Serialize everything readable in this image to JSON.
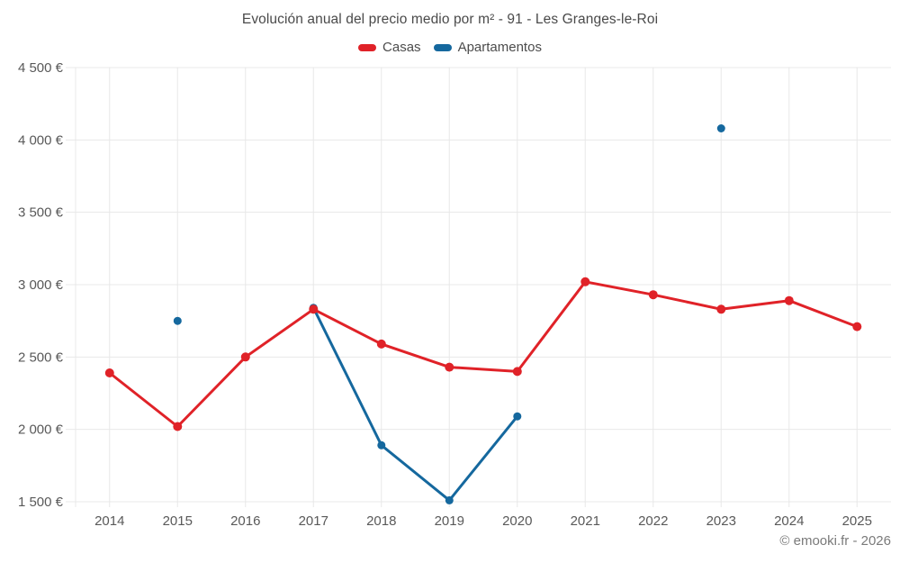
{
  "page": {
    "footer": "© emooki.fr - 2026"
  },
  "chart_data": {
    "type": "line",
    "title": "Evolución anual del precio medio por m² - 91 - Les Granges-le-Roi",
    "x": [
      "2014",
      "2015",
      "2016",
      "2017",
      "2018",
      "2019",
      "2020",
      "2021",
      "2022",
      "2023",
      "2024",
      "2025"
    ],
    "series": [
      {
        "name": "Casas",
        "color": "#e02228",
        "values": [
          2390,
          2020,
          2500,
          2830,
          2590,
          2430,
          2400,
          3020,
          2930,
          2830,
          2890,
          2710
        ]
      },
      {
        "name": "Apartamentos",
        "color": "#15689e",
        "values": [
          null,
          2750,
          null,
          2840,
          1890,
          1510,
          2090,
          null,
          null,
          4080,
          null,
          null
        ]
      }
    ],
    "ylim": [
      1500,
      4500
    ],
    "yticks": [
      {
        "value": 4500,
        "label": "4 500 €"
      },
      {
        "value": 4000,
        "label": "4 000 €"
      },
      {
        "value": 3500,
        "label": "3 500 €"
      },
      {
        "value": 3000,
        "label": "3 000 €"
      },
      {
        "value": 2500,
        "label": "2 500 €"
      },
      {
        "value": 2000,
        "label": "2 000 €"
      },
      {
        "value": 1500,
        "label": "1 500 €"
      }
    ],
    "xlabel": "",
    "ylabel": "",
    "grid": true,
    "grid_color": "#e8e8e8",
    "axis_text_color": "#595959",
    "legend_position": "top"
  }
}
